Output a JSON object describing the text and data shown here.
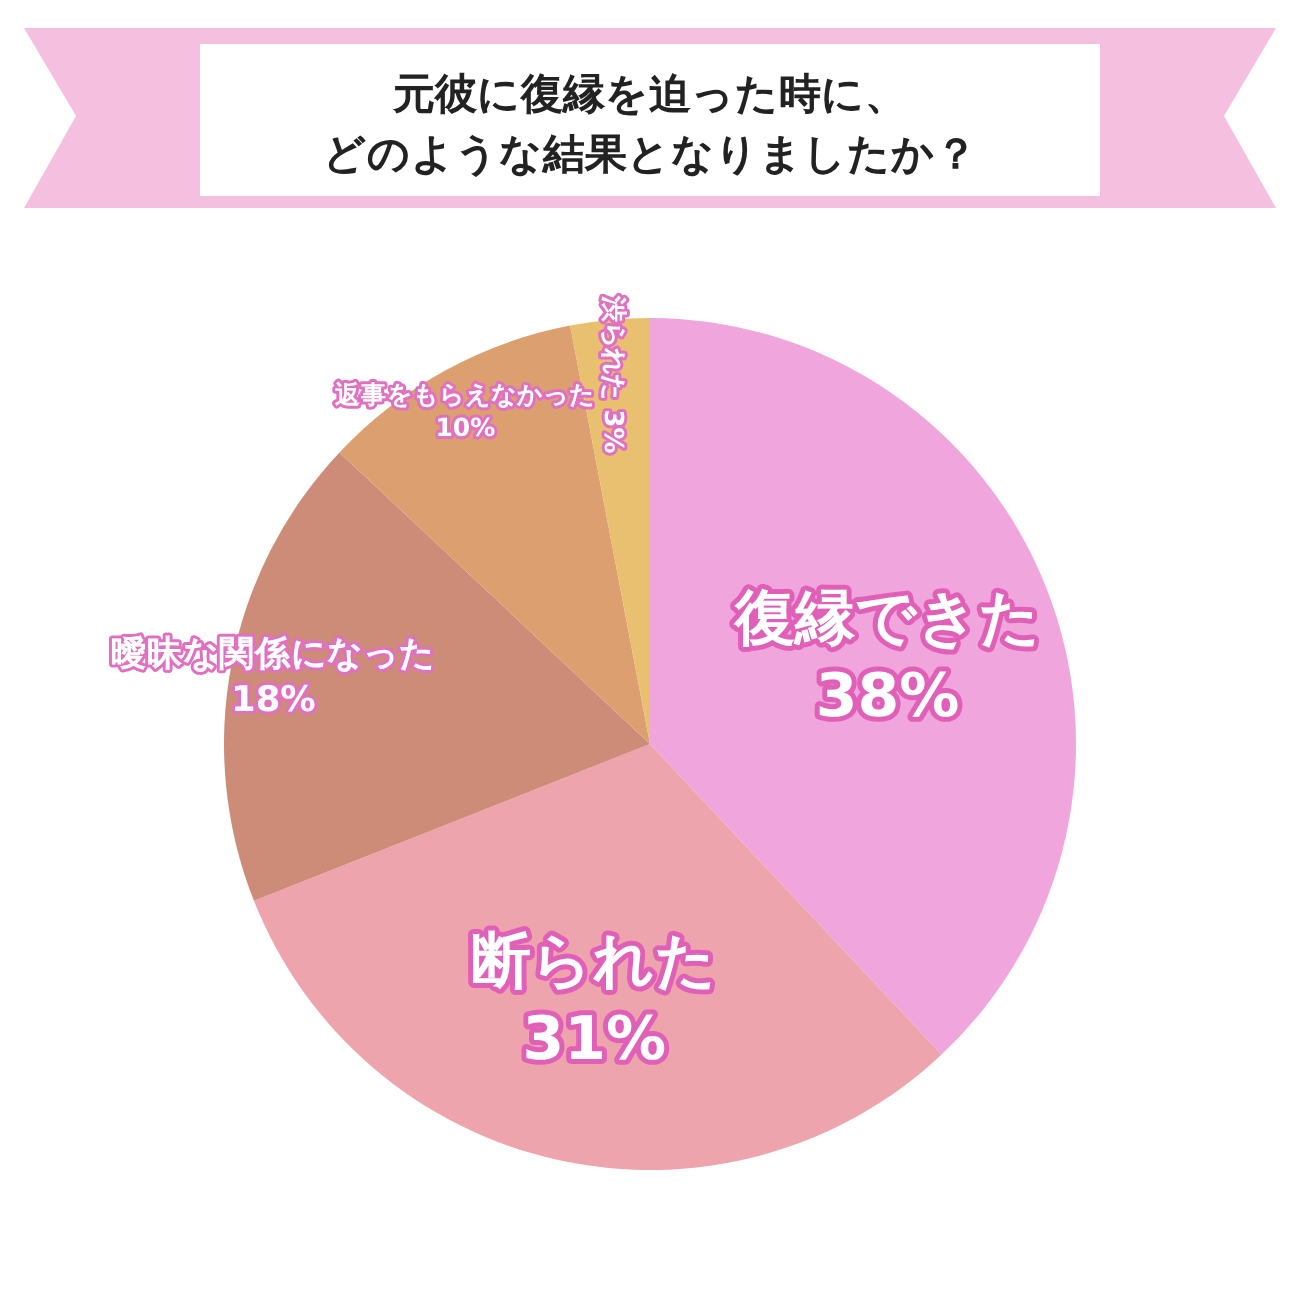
{
  "chart_data": {
    "type": "pie",
    "title": "元彼に復縁を迫った時に、どのような結果となりましたか？",
    "categories": [
      "復縁できた",
      "断られた",
      "曖昧な関係になった",
      "返事をもらえなかった",
      "渋られた"
    ],
    "values": [
      38,
      31,
      18,
      10,
      3
    ],
    "value_labels": [
      "38%",
      "31%",
      "18%",
      "10%",
      "3%"
    ],
    "colors": [
      "#f0a6dc",
      "#eea4ac",
      "#cc8c78",
      "#dca070",
      "#e8c070"
    ]
  }
}
